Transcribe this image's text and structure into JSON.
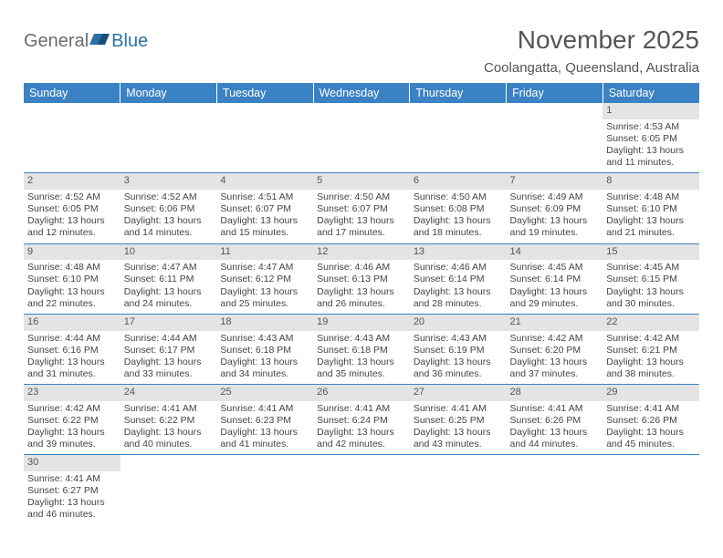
{
  "logo": {
    "general": "General",
    "blue": "Blue"
  },
  "title": "November 2025",
  "location": "Coolangatta, Queensland, Australia",
  "colors": {
    "header_bg": "#3b82c4",
    "header_text": "#ffffff",
    "daynum_bg": "#e4e4e4",
    "border": "#3b82c4",
    "text": "#444444",
    "logo_blue": "#2f6fa8"
  },
  "weekdays": [
    "Sunday",
    "Monday",
    "Tuesday",
    "Wednesday",
    "Thursday",
    "Friday",
    "Saturday"
  ],
  "weeks": [
    [
      null,
      null,
      null,
      null,
      null,
      null,
      {
        "n": "1",
        "sr": "Sunrise: 4:53 AM",
        "ss": "Sunset: 6:05 PM",
        "d1": "Daylight: 13 hours",
        "d2": "and 11 minutes."
      }
    ],
    [
      {
        "n": "2",
        "sr": "Sunrise: 4:52 AM",
        "ss": "Sunset: 6:05 PM",
        "d1": "Daylight: 13 hours",
        "d2": "and 12 minutes."
      },
      {
        "n": "3",
        "sr": "Sunrise: 4:52 AM",
        "ss": "Sunset: 6:06 PM",
        "d1": "Daylight: 13 hours",
        "d2": "and 14 minutes."
      },
      {
        "n": "4",
        "sr": "Sunrise: 4:51 AM",
        "ss": "Sunset: 6:07 PM",
        "d1": "Daylight: 13 hours",
        "d2": "and 15 minutes."
      },
      {
        "n": "5",
        "sr": "Sunrise: 4:50 AM",
        "ss": "Sunset: 6:07 PM",
        "d1": "Daylight: 13 hours",
        "d2": "and 17 minutes."
      },
      {
        "n": "6",
        "sr": "Sunrise: 4:50 AM",
        "ss": "Sunset: 6:08 PM",
        "d1": "Daylight: 13 hours",
        "d2": "and 18 minutes."
      },
      {
        "n": "7",
        "sr": "Sunrise: 4:49 AM",
        "ss": "Sunset: 6:09 PM",
        "d1": "Daylight: 13 hours",
        "d2": "and 19 minutes."
      },
      {
        "n": "8",
        "sr": "Sunrise: 4:48 AM",
        "ss": "Sunset: 6:10 PM",
        "d1": "Daylight: 13 hours",
        "d2": "and 21 minutes."
      }
    ],
    [
      {
        "n": "9",
        "sr": "Sunrise: 4:48 AM",
        "ss": "Sunset: 6:10 PM",
        "d1": "Daylight: 13 hours",
        "d2": "and 22 minutes."
      },
      {
        "n": "10",
        "sr": "Sunrise: 4:47 AM",
        "ss": "Sunset: 6:11 PM",
        "d1": "Daylight: 13 hours",
        "d2": "and 24 minutes."
      },
      {
        "n": "11",
        "sr": "Sunrise: 4:47 AM",
        "ss": "Sunset: 6:12 PM",
        "d1": "Daylight: 13 hours",
        "d2": "and 25 minutes."
      },
      {
        "n": "12",
        "sr": "Sunrise: 4:46 AM",
        "ss": "Sunset: 6:13 PM",
        "d1": "Daylight: 13 hours",
        "d2": "and 26 minutes."
      },
      {
        "n": "13",
        "sr": "Sunrise: 4:46 AM",
        "ss": "Sunset: 6:14 PM",
        "d1": "Daylight: 13 hours",
        "d2": "and 28 minutes."
      },
      {
        "n": "14",
        "sr": "Sunrise: 4:45 AM",
        "ss": "Sunset: 6:14 PM",
        "d1": "Daylight: 13 hours",
        "d2": "and 29 minutes."
      },
      {
        "n": "15",
        "sr": "Sunrise: 4:45 AM",
        "ss": "Sunset: 6:15 PM",
        "d1": "Daylight: 13 hours",
        "d2": "and 30 minutes."
      }
    ],
    [
      {
        "n": "16",
        "sr": "Sunrise: 4:44 AM",
        "ss": "Sunset: 6:16 PM",
        "d1": "Daylight: 13 hours",
        "d2": "and 31 minutes."
      },
      {
        "n": "17",
        "sr": "Sunrise: 4:44 AM",
        "ss": "Sunset: 6:17 PM",
        "d1": "Daylight: 13 hours",
        "d2": "and 33 minutes."
      },
      {
        "n": "18",
        "sr": "Sunrise: 4:43 AM",
        "ss": "Sunset: 6:18 PM",
        "d1": "Daylight: 13 hours",
        "d2": "and 34 minutes."
      },
      {
        "n": "19",
        "sr": "Sunrise: 4:43 AM",
        "ss": "Sunset: 6:18 PM",
        "d1": "Daylight: 13 hours",
        "d2": "and 35 minutes."
      },
      {
        "n": "20",
        "sr": "Sunrise: 4:43 AM",
        "ss": "Sunset: 6:19 PM",
        "d1": "Daylight: 13 hours",
        "d2": "and 36 minutes."
      },
      {
        "n": "21",
        "sr": "Sunrise: 4:42 AM",
        "ss": "Sunset: 6:20 PM",
        "d1": "Daylight: 13 hours",
        "d2": "and 37 minutes."
      },
      {
        "n": "22",
        "sr": "Sunrise: 4:42 AM",
        "ss": "Sunset: 6:21 PM",
        "d1": "Daylight: 13 hours",
        "d2": "and 38 minutes."
      }
    ],
    [
      {
        "n": "23",
        "sr": "Sunrise: 4:42 AM",
        "ss": "Sunset: 6:22 PM",
        "d1": "Daylight: 13 hours",
        "d2": "and 39 minutes."
      },
      {
        "n": "24",
        "sr": "Sunrise: 4:41 AM",
        "ss": "Sunset: 6:22 PM",
        "d1": "Daylight: 13 hours",
        "d2": "and 40 minutes."
      },
      {
        "n": "25",
        "sr": "Sunrise: 4:41 AM",
        "ss": "Sunset: 6:23 PM",
        "d1": "Daylight: 13 hours",
        "d2": "and 41 minutes."
      },
      {
        "n": "26",
        "sr": "Sunrise: 4:41 AM",
        "ss": "Sunset: 6:24 PM",
        "d1": "Daylight: 13 hours",
        "d2": "and 42 minutes."
      },
      {
        "n": "27",
        "sr": "Sunrise: 4:41 AM",
        "ss": "Sunset: 6:25 PM",
        "d1": "Daylight: 13 hours",
        "d2": "and 43 minutes."
      },
      {
        "n": "28",
        "sr": "Sunrise: 4:41 AM",
        "ss": "Sunset: 6:26 PM",
        "d1": "Daylight: 13 hours",
        "d2": "and 44 minutes."
      },
      {
        "n": "29",
        "sr": "Sunrise: 4:41 AM",
        "ss": "Sunset: 6:26 PM",
        "d1": "Daylight: 13 hours",
        "d2": "and 45 minutes."
      }
    ],
    [
      {
        "n": "30",
        "sr": "Sunrise: 4:41 AM",
        "ss": "Sunset: 6:27 PM",
        "d1": "Daylight: 13 hours",
        "d2": "and 46 minutes."
      },
      null,
      null,
      null,
      null,
      null,
      null
    ]
  ]
}
